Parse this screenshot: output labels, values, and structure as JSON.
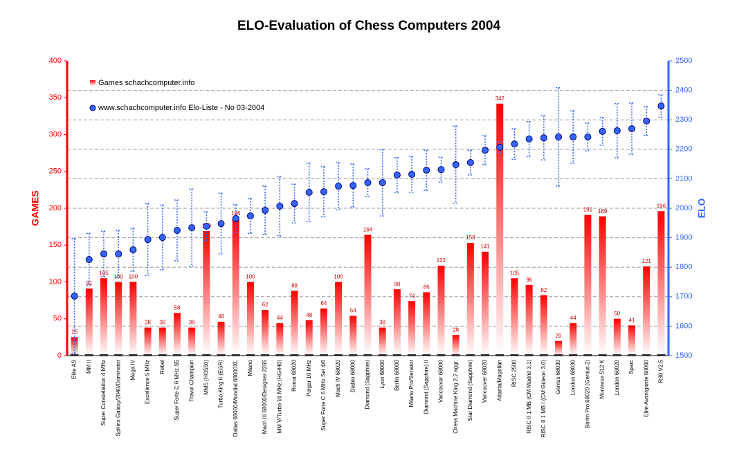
{
  "chart_data": {
    "type": "bar",
    "title": "ELO-Evaluation of Chess Computers 2004",
    "ylabel": "GAMES",
    "y2label": "ELO",
    "categories": [
      "Elite AS",
      "MM II",
      "Super Constellation 4 MHz",
      "Sphinx Galaxy/2040/Dominator",
      "Mega IV",
      "Excellence 5 MHz",
      "Rebel",
      "Super Forte C 6 MHz S5",
      "Travel Champion",
      "MM5 (HG550)",
      "Turbo King II (EGR)",
      "Dallas 68000/Mondial 68000XL",
      "Milano",
      "Mach III 68000/Designer 2265",
      "MM V/Turbo 16 MHz (HG440)",
      "Roma 68020",
      "Polgar 10 MHz",
      "Super Forte C 6 MHz Sel 4/6",
      "Mach IV 68020",
      "Diablo 68000",
      "Diamond (Sapphire)",
      "Lyon 68000",
      "Berlin 68000",
      "Milano Pro/Senator",
      "Diamond (Sapphire) II",
      "Vancouver 68000",
      "Chess Machine King 2.2 aggr.",
      "Star Diamond (Sapphire)",
      "Vancouver 68020",
      "Atlanta/Magellan",
      "RISC 2500",
      "RISC II 1 MB (CM Madrid 3.1)",
      "RISC II 1 MB I (CM Gideon 3.0)",
      "Genius 68030",
      "London 68030",
      "Berlin Pro 68020 (Genius 2)",
      "Montreux 512 K",
      "London 68020",
      "Sparc",
      "Elite Avantgarde 68060",
      "R30 V2.5"
    ],
    "series": [
      {
        "name": "Games schachcomputer.info",
        "type": "bar",
        "color": "#ff0000",
        "values": [
          25,
          91,
          105,
          100,
          100,
          38,
          38,
          58,
          38,
          169,
          46,
          186,
          100,
          62,
          44,
          88,
          48,
          64,
          100,
          54,
          164,
          38,
          90,
          74,
          86,
          122,
          28,
          153,
          141,
          342,
          105,
          96,
          82,
          20,
          44,
          191,
          189,
          50,
          41,
          121,
          196
        ]
      },
      {
        "name": "www.schachcomputer.info Elo-Liste - No 03-2004",
        "type": "scatter",
        "axis": "y2",
        "color": "#3366ff",
        "values": [
          1702,
          1826,
          1845,
          1845,
          1859,
          1894,
          1901,
          1925,
          1934,
          1939,
          1948,
          1965,
          1974,
          1993,
          2007,
          2016,
          2054,
          2056,
          2075,
          2077,
          2087,
          2087,
          2113,
          2115,
          2129,
          2131,
          2148,
          2155,
          2197,
          2207,
          2218,
          2235,
          2239,
          2242,
          2242,
          2242,
          2261,
          2263,
          2270,
          2296,
          2347
        ],
        "errors": [
          195,
          89,
          77,
          80,
          73,
          122,
          110,
          103,
          131,
          49,
          103,
          47,
          59,
          82,
          101,
          66,
          99,
          85,
          80,
          73,
          47,
          113,
          59,
          61,
          68,
          42,
          131,
          42,
          49,
          19,
          52,
          59,
          75,
          167,
          89,
          47,
          47,
          92,
          87,
          49,
          38
        ]
      }
    ],
    "ylim": [
      0,
      400
    ],
    "yticks": [
      0,
      50,
      100,
      150,
      200,
      250,
      300,
      350,
      400
    ],
    "y2lim": [
      1500,
      2500
    ],
    "y2ticks": [
      1500,
      1600,
      1700,
      1800,
      1900,
      2000,
      2100,
      2200,
      2300,
      2400,
      2500
    ],
    "grid": true
  }
}
